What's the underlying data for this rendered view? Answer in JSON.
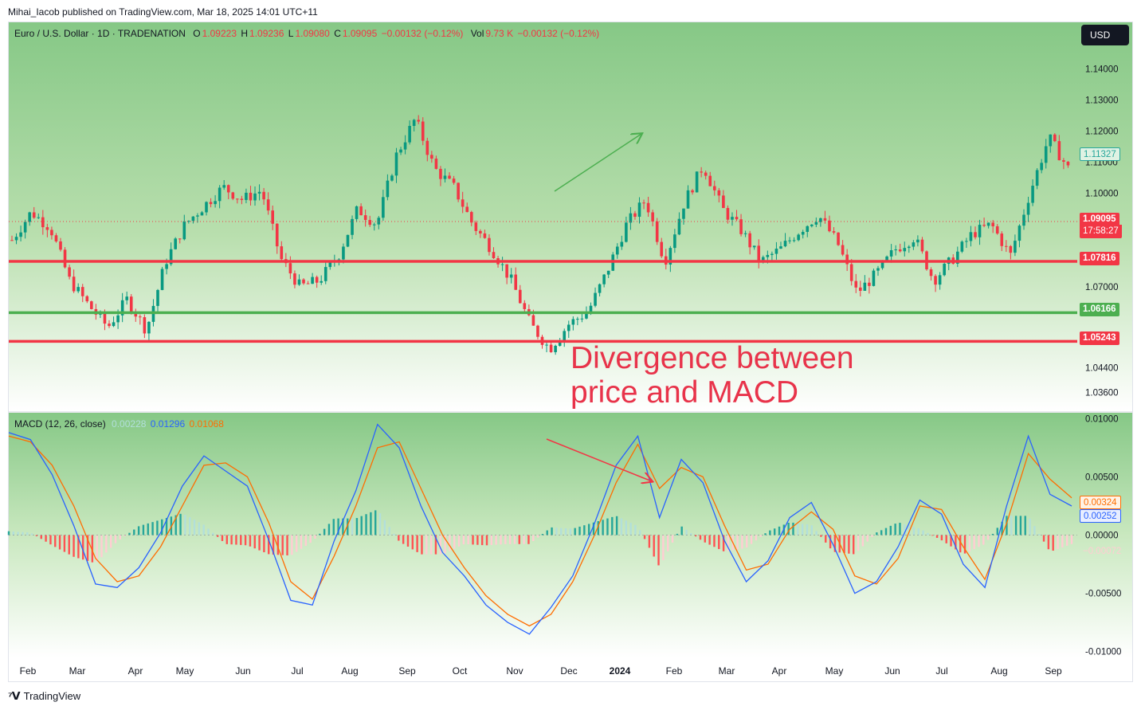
{
  "publisher_line": "Mihai_Iacob published on TradingView.com, Mar 18, 2025 14:01 UTC+11",
  "price_legend": {
    "symbol": "Euro / U.S. Dollar · 1D · TRADENATION",
    "o_label": "O",
    "o_value": "1.09223",
    "h_label": "H",
    "h_value": "1.09236",
    "l_label": "L",
    "l_value": "1.09080",
    "c_label": "C",
    "c_value": "1.09095",
    "change": "−0.00132 (−0.12%)",
    "vol_label": "Vol",
    "vol_value": "9.73 K",
    "vol_change": "−0.00132 (−0.12%)"
  },
  "currency_button": "USD",
  "macd_legend": {
    "name": "MACD (12, 26, close)",
    "hist_value": "0.00228",
    "macd_value": "0.01296",
    "signal_value": "0.01068"
  },
  "annotation": "Divergence between price and MACD",
  "price_tags": {
    "last_ma": "1.11327",
    "current": "1.09095",
    "countdown": "17:58:27",
    "level_1": "1.07816",
    "level_2": "1.06166",
    "level_3": "1.05243"
  },
  "macd_tags": {
    "signal": "0.00324",
    "macd": "0.00252",
    "hist": "−0.00072"
  },
  "footer_brand": "TradingView",
  "colors": {
    "up": "#089981",
    "down": "#f23645",
    "macd": "#2962ff",
    "signal": "#ff6d00",
    "support": "#4caf50",
    "resistance": "#f23645",
    "hist_up": "#26a69a",
    "hist_down": "#ff5252",
    "hist_up_light": "#b2dfdb",
    "hist_down_light": "#ffcdd2"
  },
  "chart_data": [
    {
      "type": "candlestick",
      "x_ticks": [
        "Feb",
        "Mar",
        "Apr",
        "May",
        "Jun",
        "Jul",
        "Aug",
        "Sep",
        "Oct",
        "Nov",
        "Dec",
        "2024",
        "Feb",
        "Mar",
        "Apr",
        "May",
        "Jun",
        "Jul",
        "Aug",
        "Sep"
      ],
      "y_ticks": [
        "1.14000",
        "1.13000",
        "1.12000",
        "1.11000",
        "1.10000",
        "1.07000",
        "1.04400",
        "1.03600"
      ],
      "ylim": [
        1.03,
        1.155
      ],
      "horizontal_levels": [
        {
          "value": 1.07816,
          "color": "red"
        },
        {
          "value": 1.06166,
          "color": "green"
        },
        {
          "value": 1.05243,
          "color": "red"
        }
      ],
      "current_price_line": 1.09095,
      "close_path": [
        [
          "Feb",
          1.085
        ],
        [
          "Feb",
          1.094
        ],
        [
          "Feb",
          1.089
        ],
        [
          "Feb",
          1.072
        ],
        [
          "Mar",
          1.064
        ],
        [
          "Mar",
          1.057
        ],
        [
          "Mar",
          1.066
        ],
        [
          "Mar",
          1.056
        ],
        [
          "Apr",
          1.078
        ],
        [
          "Apr",
          1.09
        ],
        [
          "Apr",
          1.096
        ],
        [
          "May",
          1.102
        ],
        [
          "May",
          1.098
        ],
        [
          "May",
          1.101
        ],
        [
          "Jun",
          1.079
        ],
        [
          "Jun",
          1.07
        ],
        [
          "Jun",
          1.072
        ],
        [
          "Jun",
          1.08
        ],
        [
          "Jul",
          1.095
        ],
        [
          "Jul",
          1.09
        ],
        [
          "Jul",
          1.112
        ],
        [
          "Jul",
          1.124
        ],
        [
          "Aug",
          1.108
        ],
        [
          "Aug",
          1.102
        ],
        [
          "Aug",
          1.09
        ],
        [
          "Sep",
          1.082
        ],
        [
          "Sep",
          1.072
        ],
        [
          "Oct",
          1.058
        ],
        [
          "Oct",
          1.05
        ],
        [
          "Oct",
          1.058
        ],
        [
          "Nov",
          1.062
        ],
        [
          "Nov",
          1.075
        ],
        [
          "Nov",
          1.09
        ],
        [
          "Dec",
          1.098
        ],
        [
          "Dec",
          1.078
        ],
        [
          "Dec",
          1.097
        ],
        [
          "2024",
          1.109
        ],
        [
          "2024",
          1.095
        ],
        [
          "2024",
          1.088
        ],
        [
          "Feb",
          1.078
        ],
        [
          "Feb",
          1.082
        ],
        [
          "Mar",
          1.088
        ],
        [
          "Mar",
          1.093
        ],
        [
          "Apr",
          1.084
        ],
        [
          "Apr",
          1.068
        ],
        [
          "May",
          1.074
        ],
        [
          "May",
          1.082
        ],
        [
          "Jun",
          1.086
        ],
        [
          "Jun",
          1.072
        ],
        [
          "Jul",
          1.079
        ],
        [
          "Jul",
          1.087
        ],
        [
          "Aug",
          1.09
        ],
        [
          "Aug",
          1.08
        ],
        [
          "Aug",
          1.1
        ],
        [
          "Sep",
          1.118
        ],
        [
          "Sep",
          1.108
        ]
      ],
      "annotation": "Divergence between price and MACD",
      "trend_arrow": {
        "from": [
          "Dec",
          1.1
        ],
        "to": [
          "2024",
          1.12
        ],
        "color": "green"
      }
    },
    {
      "type": "line",
      "name": "MACD (12, 26, close)",
      "ylim": [
        -0.0105,
        0.0105
      ],
      "y_ticks": [
        "0.01000",
        "0.00500",
        "0.00000",
        "-0.00500",
        "-0.01000"
      ],
      "series": [
        {
          "name": "MACD",
          "color": "#2962ff",
          "values": [
            0.0088,
            0.0082,
            0.0052,
            0.0008,
            -0.0042,
            -0.0045,
            -0.0028,
            0.0002,
            0.0042,
            0.0068,
            0.0055,
            0.0042,
            -0.0005,
            -0.0056,
            -0.006,
            -0.0005,
            0.0038,
            0.0095,
            0.0075,
            0.0025,
            -0.0015,
            -0.0035,
            -0.006,
            -0.0075,
            -0.0085,
            -0.0062,
            -0.0035,
            0.001,
            0.006,
            0.0085,
            0.0015,
            0.0065,
            0.0045,
            -0.0005,
            -0.004,
            -0.0022,
            0.0015,
            0.0028,
            -0.0008,
            -0.005,
            -0.004,
            -0.001,
            0.003,
            0.0018,
            -0.0025,
            -0.0045,
            0.0025,
            0.0085,
            0.0035,
            0.0025
          ]
        },
        {
          "name": "Signal",
          "color": "#ff6d00",
          "values": [
            0.0085,
            0.008,
            0.006,
            0.0025,
            -0.002,
            -0.004,
            -0.0035,
            -0.001,
            0.0025,
            0.006,
            0.0062,
            0.005,
            0.001,
            -0.004,
            -0.0055,
            -0.0018,
            0.0025,
            0.0075,
            0.008,
            0.004,
            0.0,
            -0.0028,
            -0.0052,
            -0.0068,
            -0.0078,
            -0.0068,
            -0.004,
            0.0,
            0.0045,
            0.0078,
            0.004,
            0.0058,
            0.005,
            0.0008,
            -0.003,
            -0.0025,
            0.0005,
            0.002,
            0.0005,
            -0.0035,
            -0.0042,
            -0.002,
            0.0025,
            0.0022,
            -0.001,
            -0.0038,
            0.001,
            0.007,
            0.0048,
            0.0032
          ]
        }
      ],
      "histogram": "MACD − Signal (bars)",
      "trend_arrow": {
        "from": [
          "Dec",
          0.009
        ],
        "to": [
          "2024",
          0.0052
        ],
        "color": "red"
      }
    }
  ]
}
